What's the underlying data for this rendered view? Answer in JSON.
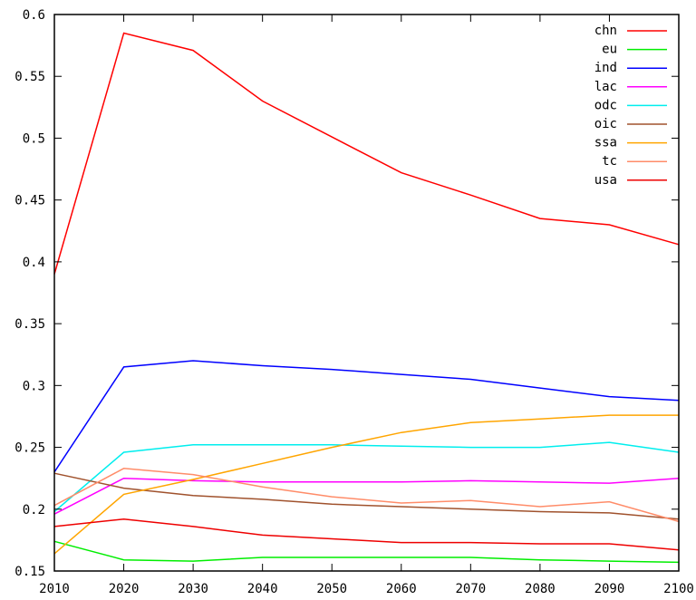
{
  "chart_data": {
    "type": "line",
    "title": "",
    "xlabel": "",
    "ylabel": "",
    "x": [
      2010,
      2020,
      2030,
      2040,
      2050,
      2060,
      2070,
      2080,
      2090,
      2100
    ],
    "xlim": [
      2010,
      2100
    ],
    "ylim": [
      0.15,
      0.6
    ],
    "x_ticks": [
      "2010",
      "2020",
      "2030",
      "2040",
      "2050",
      "2060",
      "2070",
      "2080",
      "2090",
      "2100"
    ],
    "y_ticks": [
      "0.15",
      "0.2",
      "0.25",
      "0.3",
      "0.35",
      "0.4",
      "0.45",
      "0.5",
      "0.55",
      "0.6"
    ],
    "y_tick_values": [
      0.15,
      0.2,
      0.25,
      0.3,
      0.35,
      0.4,
      0.45,
      0.5,
      0.55,
      0.6
    ],
    "grid": false,
    "legend_position": "top-right",
    "series": [
      {
        "name": "chn",
        "color": "#ff0000",
        "values": [
          0.39,
          0.585,
          0.571,
          0.53,
          0.501,
          0.472,
          0.454,
          0.435,
          0.43,
          0.414
        ]
      },
      {
        "name": "eu",
        "color": "#00ee00",
        "values": [
          0.174,
          0.159,
          0.158,
          0.161,
          0.161,
          0.161,
          0.161,
          0.159,
          0.158,
          0.157
        ]
      },
      {
        "name": "ind",
        "color": "#0000ff",
        "values": [
          0.23,
          0.315,
          0.32,
          0.316,
          0.313,
          0.309,
          0.305,
          0.298,
          0.291,
          0.288
        ]
      },
      {
        "name": "lac",
        "color": "#ff00ff",
        "values": [
          0.196,
          0.225,
          0.223,
          0.222,
          0.222,
          0.222,
          0.223,
          0.222,
          0.221,
          0.225
        ]
      },
      {
        "name": "odc",
        "color": "#00eeee",
        "values": [
          0.198,
          0.246,
          0.252,
          0.252,
          0.252,
          0.251,
          0.25,
          0.25,
          0.254,
          0.246
        ]
      },
      {
        "name": "oic",
        "color": "#a0522d",
        "values": [
          0.229,
          0.217,
          0.211,
          0.208,
          0.204,
          0.202,
          0.2,
          0.198,
          0.197,
          0.192
        ]
      },
      {
        "name": "ssa",
        "color": "#ffa500",
        "values": [
          0.164,
          0.212,
          0.224,
          0.237,
          0.25,
          0.262,
          0.27,
          0.273,
          0.276,
          0.276
        ]
      },
      {
        "name": "tc",
        "color": "#ff8c69",
        "values": [
          0.203,
          0.233,
          0.228,
          0.218,
          0.21,
          0.205,
          0.207,
          0.202,
          0.206,
          0.19
        ]
      },
      {
        "name": "usa",
        "color": "#ee0000",
        "values": [
          0.186,
          0.192,
          0.186,
          0.179,
          0.176,
          0.173,
          0.173,
          0.172,
          0.172,
          0.167
        ]
      }
    ]
  }
}
